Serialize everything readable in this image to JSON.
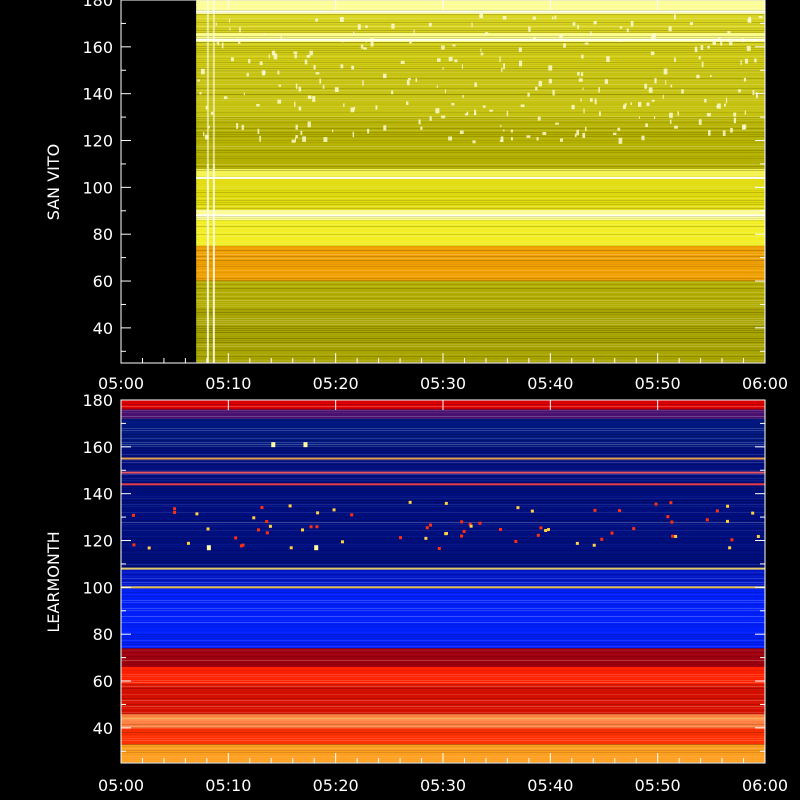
{
  "chart_data": [
    {
      "type": "heatmap",
      "title": "",
      "xlabel": "",
      "ylabel": "SAN VITO",
      "x_ticks": [
        "05:00",
        "05:10",
        "05:20",
        "05:30",
        "05:40",
        "05:50",
        "06:00"
      ],
      "x_range": [
        "05:00",
        "06:00"
      ],
      "y_ticks": [
        40,
        60,
        80,
        100,
        120,
        140,
        160,
        180
      ],
      "ylim": [
        25,
        180
      ],
      "data_start": "05:07",
      "colormap": "yellow",
      "bands": [
        {
          "ymin": 25,
          "ymax": 48,
          "color": "#a8a400"
        },
        {
          "ymin": 48,
          "ymax": 60,
          "color": "#b2ad00"
        },
        {
          "ymin": 60,
          "ymax": 75,
          "color": "#f0a000"
        },
        {
          "ymin": 75,
          "ymax": 86,
          "color": "#f2ee22"
        },
        {
          "ymin": 86,
          "ymax": 90,
          "color": "#fdfd90"
        },
        {
          "ymin": 90,
          "ymax": 104,
          "color": "#e2dc0e"
        },
        {
          "ymin": 104,
          "ymax": 108,
          "color": "#f6f450"
        },
        {
          "ymin": 108,
          "ymax": 130,
          "color": "#b6b200"
        },
        {
          "ymin": 130,
          "ymax": 150,
          "color": "#c6c210"
        },
        {
          "ymin": 150,
          "ymax": 162,
          "color": "#d2ce16"
        },
        {
          "ymin": 162,
          "ymax": 166,
          "color": "#fbfb80"
        },
        {
          "ymin": 166,
          "ymax": 174,
          "color": "#d8d420"
        },
        {
          "ymin": 174,
          "ymax": 180,
          "color": "#fdfd96"
        }
      ],
      "grid": false
    },
    {
      "type": "heatmap",
      "title": "",
      "xlabel": "",
      "ylabel": "LEARMONTH",
      "x_ticks": [
        "05:00",
        "05:10",
        "05:20",
        "05:30",
        "05:40",
        "05:50",
        "06:00"
      ],
      "x_range": [
        "05:00",
        "06:00"
      ],
      "y_ticks": [
        40,
        60,
        80,
        100,
        120,
        140,
        160,
        180
      ],
      "ylim": [
        25,
        180
      ],
      "data_start": "05:00",
      "colormap": "blue-red-yellow",
      "bands": [
        {
          "ymin": 25,
          "ymax": 33,
          "color": "#ffa020"
        },
        {
          "ymin": 33,
          "ymax": 40,
          "color": "#ff3000"
        },
        {
          "ymin": 40,
          "ymax": 46,
          "color": "#ff8040"
        },
        {
          "ymin": 46,
          "ymax": 58,
          "color": "#d81000"
        },
        {
          "ymin": 58,
          "ymax": 66,
          "color": "#ff2000"
        },
        {
          "ymin": 66,
          "ymax": 74,
          "color": "#a00010"
        },
        {
          "ymin": 74,
          "ymax": 100,
          "color": "#0020ff"
        },
        {
          "ymin": 100,
          "ymax": 108,
          "color": "#0018c8"
        },
        {
          "ymin": 108,
          "ymax": 160,
          "color": "#000f80"
        },
        {
          "ymin": 160,
          "ymax": 172,
          "color": "#001880"
        },
        {
          "ymin": 172,
          "ymax": 176,
          "color": "#4a1070"
        },
        {
          "ymin": 176,
          "ymax": 180,
          "color": "#e00000"
        }
      ],
      "grid": false
    }
  ]
}
